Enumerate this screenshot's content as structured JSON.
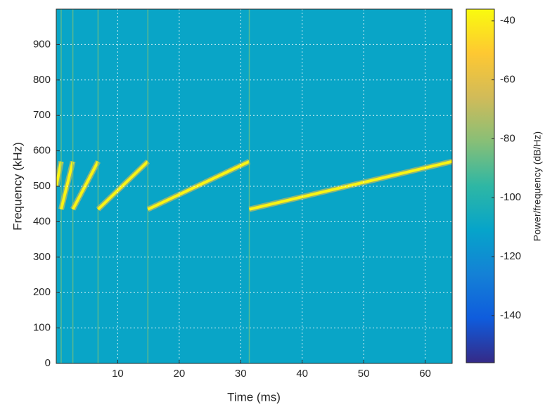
{
  "chart_data": {
    "type": "spectrogram",
    "xlabel": "Time (ms)",
    "ylabel": "Frequency (kHz)",
    "colorbar_label": "Power/frequency (dB/Hz)",
    "xlim": [
      0,
      64.4
    ],
    "xticks": [
      10,
      20,
      30,
      40,
      50,
      60
    ],
    "ylim": [
      0,
      1000
    ],
    "yticks": [
      0,
      100,
      200,
      300,
      400,
      500,
      600,
      700,
      800,
      900
    ],
    "clim": [
      -156,
      -36
    ],
    "cticks": [
      -140,
      -120,
      -100,
      -80,
      -60,
      -40
    ],
    "colormap": [
      "#352a87",
      "#0f5cdd",
      "#1481d6",
      "#06a4ca",
      "#2eb7a4",
      "#87bf77",
      "#d1bb59",
      "#fec832",
      "#f9fb0e"
    ],
    "grid": true,
    "background_db": -110,
    "chirp_db": -38,
    "transient_db": -85,
    "segments": [
      {
        "t0": 0,
        "t1": 0.8,
        "f0": 500,
        "f1": 570
      },
      {
        "t0": 0.8,
        "t1": 2.7,
        "f0": 435,
        "f1": 570
      },
      {
        "t0": 2.7,
        "t1": 6.8,
        "f0": 435,
        "f1": 570
      },
      {
        "t0": 6.8,
        "t1": 14.9,
        "f0": 435,
        "f1": 570
      },
      {
        "t0": 14.9,
        "t1": 31.4,
        "f0": 435,
        "f1": 570
      },
      {
        "t0": 31.4,
        "t1": 64.4,
        "f0": 435,
        "f1": 570
      }
    ]
  }
}
